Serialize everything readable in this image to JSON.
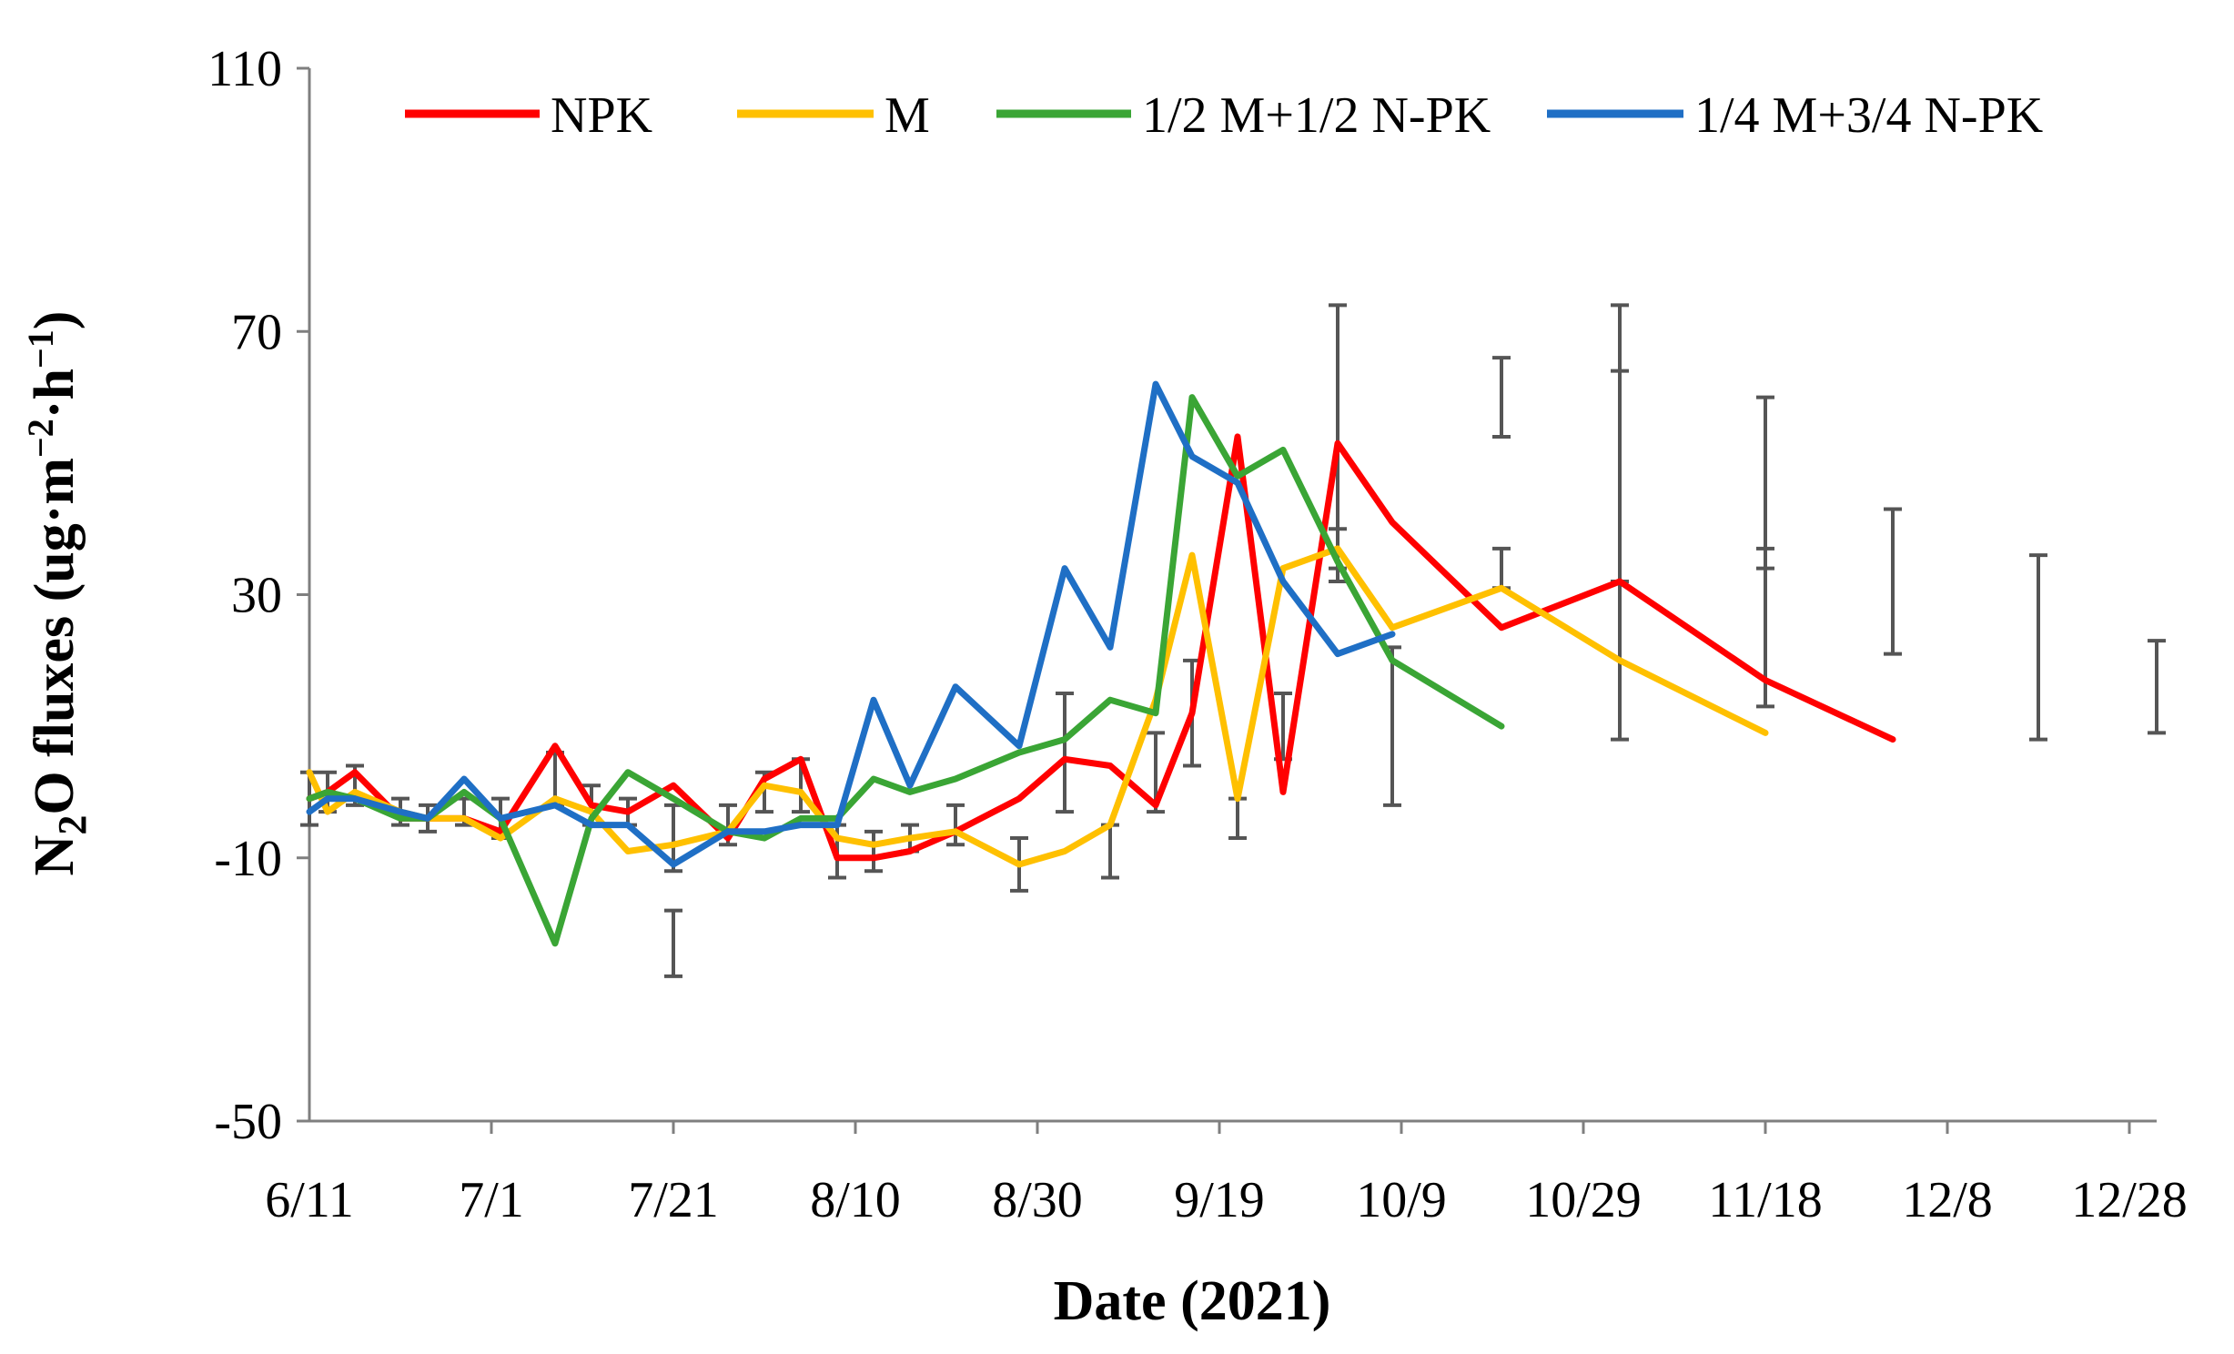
{
  "chart_data": {
    "type": "line",
    "title": "",
    "xlabel": "Date (2021)",
    "ylabel_parts": {
      "n": "N",
      "sub_2": "2",
      "o_fluxes": "O fluxes (ug·m",
      "exp_m2": "−2",
      "h": "·h",
      "exp_m1": "−1",
      "close": ")"
    },
    "x_axis": {
      "type": "date",
      "min": "2021-06-11",
      "max": "2021-12-31",
      "ticks": [
        "2021-06-11",
        "2021-07-01",
        "2021-07-21",
        "2021-08-10",
        "2021-08-30",
        "2021-09-19",
        "2021-10-09",
        "2021-10-29",
        "2021-11-18",
        "2021-12-08",
        "2021-12-28"
      ],
      "tick_labels": [
        "6/11",
        "7/1",
        "7/21",
        "8/10",
        "8/30",
        "9/19",
        "10/9",
        "10/29",
        "11/18",
        "12/8",
        "12/28"
      ]
    },
    "y_axis": {
      "min": -50,
      "max": 110,
      "ticks": [
        110,
        70,
        30,
        -10,
        -50
      ],
      "tick_labels": [
        "110",
        "70",
        "30",
        "-10",
        "-50"
      ]
    },
    "grid": false,
    "legend_position": "top",
    "x": [
      "2021-06-11",
      "2021-06-13",
      "2021-06-16",
      "2021-06-21",
      "2021-06-24",
      "2021-06-28",
      "2021-07-02",
      "2021-07-08",
      "2021-07-12",
      "2021-07-16",
      "2021-07-21",
      "2021-07-27",
      "2021-07-31",
      "2021-08-04",
      "2021-08-08",
      "2021-08-12",
      "2021-08-16",
      "2021-08-21",
      "2021-08-28",
      "2021-09-02",
      "2021-09-07",
      "2021-09-12",
      "2021-09-16",
      "2021-09-21",
      "2021-09-26",
      "2021-10-02",
      "2021-10-08",
      "2021-10-20",
      "2021-11-02",
      "2021-11-18",
      "2021-12-02",
      "2021-12-18",
      "2021-12-31"
    ],
    "series": [
      {
        "name": "NPK",
        "color": "#ff0000",
        "values": [
          -1,
          0,
          3,
          -4,
          -4,
          -4,
          -6,
          7,
          -2,
          -3,
          1,
          -7,
          2,
          5,
          -10,
          -10,
          -9,
          -6,
          -1,
          5,
          4,
          -2,
          12,
          54,
          0,
          53,
          41,
          25,
          32,
          17,
          8,
          null,
          null
        ]
      },
      {
        "name": "M",
        "color": "#ffc000",
        "values": [
          3,
          -3,
          0,
          -3,
          -4,
          -4,
          -7,
          -1,
          -3,
          -9,
          -8,
          -6,
          1,
          0,
          -7,
          -8,
          -7,
          -6,
          -11,
          -9,
          -5,
          14,
          36,
          -1,
          34,
          37,
          25,
          31,
          20,
          9,
          null,
          null,
          null
        ],
        "error": [
          3,
          3,
          3,
          3,
          3,
          3,
          3,
          3,
          3,
          3,
          3,
          3,
          3,
          3,
          3,
          3,
          3,
          3,
          4,
          4,
          4,
          4,
          4,
          4,
          4,
          4,
          4,
          4,
          4,
          4,
          4,
          4,
          4
        ]
      },
      {
        "name": "1/2 M+1/2 N-PK",
        "color": "#3aa535",
        "values": [
          -1,
          0,
          -1,
          -4,
          -4,
          0,
          -4,
          -23,
          -4,
          3,
          -1,
          -6,
          -7,
          -4,
          -4,
          2,
          0,
          2,
          6,
          8,
          14,
          12,
          60,
          48,
          52,
          35,
          20,
          10,
          null,
          null,
          null,
          null,
          null
        ]
      },
      {
        "name": "1/4 M+3/4 N-PK",
        "color": "#1f6fc5",
        "values": [
          -3,
          -1,
          -1,
          -3,
          -4,
          2,
          -4,
          -2,
          -5,
          -5,
          -11,
          -6,
          -6,
          -5,
          -5,
          14,
          1,
          16,
          7,
          34,
          22,
          62,
          51,
          47,
          32,
          21,
          24,
          null,
          null,
          null,
          null,
          null,
          null
        ]
      }
    ],
    "error_bars": {
      "color": "#555555",
      "points": [
        {
          "x": "2021-06-11",
          "y": -1,
          "err": 4
        },
        {
          "x": "2021-06-13",
          "y": 0,
          "err": 3
        },
        {
          "x": "2021-06-16",
          "y": 1,
          "err": 3
        },
        {
          "x": "2021-06-21",
          "y": -3,
          "err": 2
        },
        {
          "x": "2021-06-24",
          "y": -4,
          "err": 2
        },
        {
          "x": "2021-06-28",
          "y": -3,
          "err": 2
        },
        {
          "x": "2021-07-02",
          "y": -4,
          "err": 3
        },
        {
          "x": "2021-07-08",
          "y": 2,
          "err": 4
        },
        {
          "x": "2021-07-12",
          "y": -2,
          "err": 3
        },
        {
          "x": "2021-07-16",
          "y": -3,
          "err": 2
        },
        {
          "x": "2021-07-21",
          "y": -7,
          "err": 5
        },
        {
          "x": "2021-07-21",
          "y": -23,
          "err": 5
        },
        {
          "x": "2021-07-27",
          "y": -5,
          "err": 3
        },
        {
          "x": "2021-07-31",
          "y": 0,
          "err": 3
        },
        {
          "x": "2021-08-04",
          "y": 1,
          "err": 4
        },
        {
          "x": "2021-08-08",
          "y": -9,
          "err": 4
        },
        {
          "x": "2021-08-12",
          "y": -9,
          "err": 3
        },
        {
          "x": "2021-08-16",
          "y": -7,
          "err": 2
        },
        {
          "x": "2021-08-21",
          "y": -5,
          "err": 3
        },
        {
          "x": "2021-08-28",
          "y": -11,
          "err": 4
        },
        {
          "x": "2021-09-02",
          "y": 6,
          "err": 9
        },
        {
          "x": "2021-09-07",
          "y": -9,
          "err": 4
        },
        {
          "x": "2021-09-12",
          "y": 3,
          "err": 6
        },
        {
          "x": "2021-09-16",
          "y": 12,
          "err": 8
        },
        {
          "x": "2021-09-21",
          "y": -4,
          "err": 3
        },
        {
          "x": "2021-09-26",
          "y": 10,
          "err": 5
        },
        {
          "x": "2021-10-02",
          "y": 54,
          "err": 20
        },
        {
          "x": "2021-10-02",
          "y": 36,
          "err": 4
        },
        {
          "x": "2021-10-08",
          "y": 10,
          "err": 12
        },
        {
          "x": "2021-10-20",
          "y": 60,
          "err": 6
        },
        {
          "x": "2021-10-20",
          "y": 34,
          "err": 3
        },
        {
          "x": "2021-11-02",
          "y": 41,
          "err": 33
        },
        {
          "x": "2021-11-02",
          "y": 48,
          "err": 16
        },
        {
          "x": "2021-11-18",
          "y": 47,
          "err": 13
        },
        {
          "x": "2021-11-18",
          "y": 25,
          "err": 12
        },
        {
          "x": "2021-12-02",
          "y": 32,
          "err": 11
        },
        {
          "x": "2021-12-18",
          "y": 22,
          "err": 14
        },
        {
          "x": "2021-12-31",
          "y": 16,
          "err": 7
        }
      ]
    }
  }
}
